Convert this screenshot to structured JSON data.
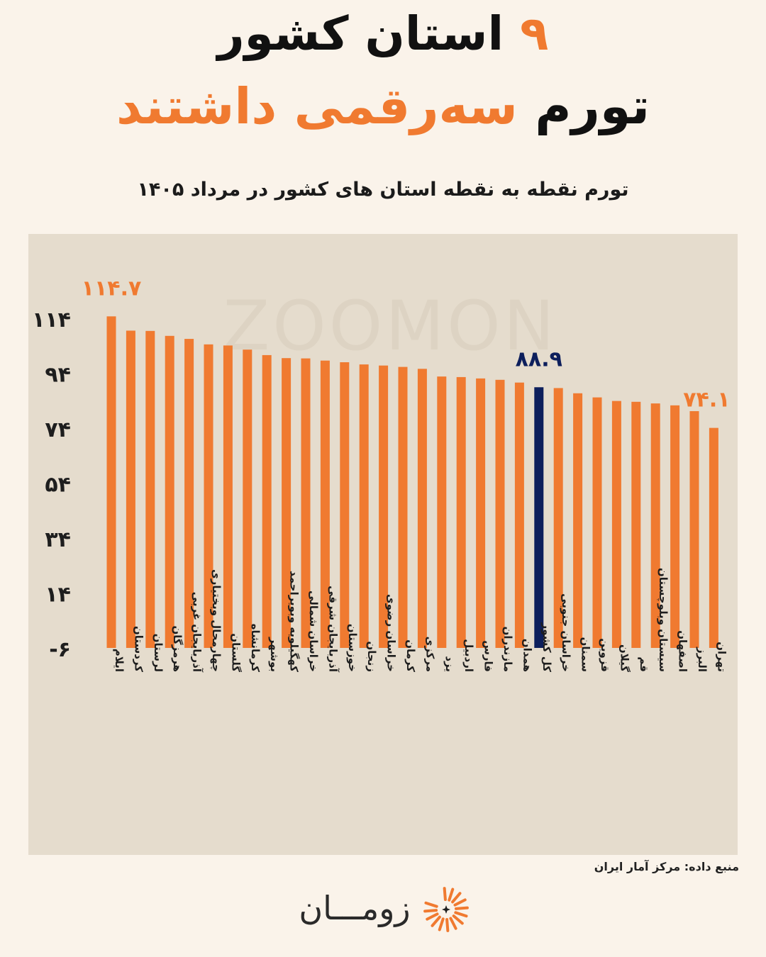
{
  "header": {
    "title_line1_number": "۹",
    "title_line1_text": "استان کشور",
    "title_line2_dark": "تورم",
    "title_line2_accent": "سه‌رقمی داشتند"
  },
  "subtitle": "تورم نقطه به نقطه استان های کشور در مرداد ۱۴۰۵",
  "watermark": "ZOOMON",
  "source": "منبع داده: مرکز آمار ایران",
  "brand": {
    "name": "زومـــان",
    "logo_icon": "sunburst-logo-icon"
  },
  "colors": {
    "bar": "#f07a30",
    "highlight": "#0d1f5c",
    "plot_bg": "#e5dccd",
    "page_bg": "#faf3ea"
  },
  "chart_data": {
    "type": "bar",
    "title": "تورم نقطه به نقطه استان های کشور در مرداد ۱۴۰۵",
    "categories": [
      "ایلام",
      "کردستان",
      "لرستان",
      "هرمزگان",
      "آذربایجان غربی",
      "چهارمحال وبختیاری",
      "گلستان",
      "کرمانشاه",
      "بوشهر",
      "کهگیلویه وبویراحمد",
      "خراسان شمالی",
      "آذربایجان شرقی",
      "خوزستان",
      "زنجان",
      "خراسان رضوی",
      "کرمان",
      "مرکزی",
      "یزد",
      "اردبیل",
      "فارس",
      "مازندران",
      "همدان",
      "کل کشور",
      "خراسان جنوبی",
      "سمنان",
      "قزوین",
      "گیلان",
      "قم",
      "سیستان وبلوچستان",
      "اصفهان",
      "البرز",
      "تهران"
    ],
    "values": [
      114.7,
      109.5,
      109.4,
      107.6,
      106.5,
      104.5,
      104.1,
      102.6,
      100.6,
      99.5,
      99.4,
      98.6,
      98.0,
      97.2,
      96.8,
      96.3,
      95.6,
      92.8,
      92.6,
      92.1,
      91.6,
      90.6,
      88.9,
      88.6,
      86.7,
      85.2,
      83.9,
      83.6,
      83.0,
      82.3,
      80.2,
      74.1
    ],
    "highlight_category": "کل کشور",
    "value_labels": [
      {
        "category": "ایلام",
        "text": "۱۱۴.۷"
      },
      {
        "category": "کل کشور",
        "text": "۸۸.۹"
      },
      {
        "category": "تهران",
        "text": "۷۴.۱"
      }
    ],
    "yticks": [
      -6,
      14,
      34,
      54,
      74,
      94,
      114
    ],
    "ytick_labels": [
      "-۶",
      "۱۴",
      "۳۴",
      "۵۴",
      "۷۴",
      "۹۴",
      "۱۱۴"
    ],
    "ylim": [
      -6,
      118
    ]
  }
}
